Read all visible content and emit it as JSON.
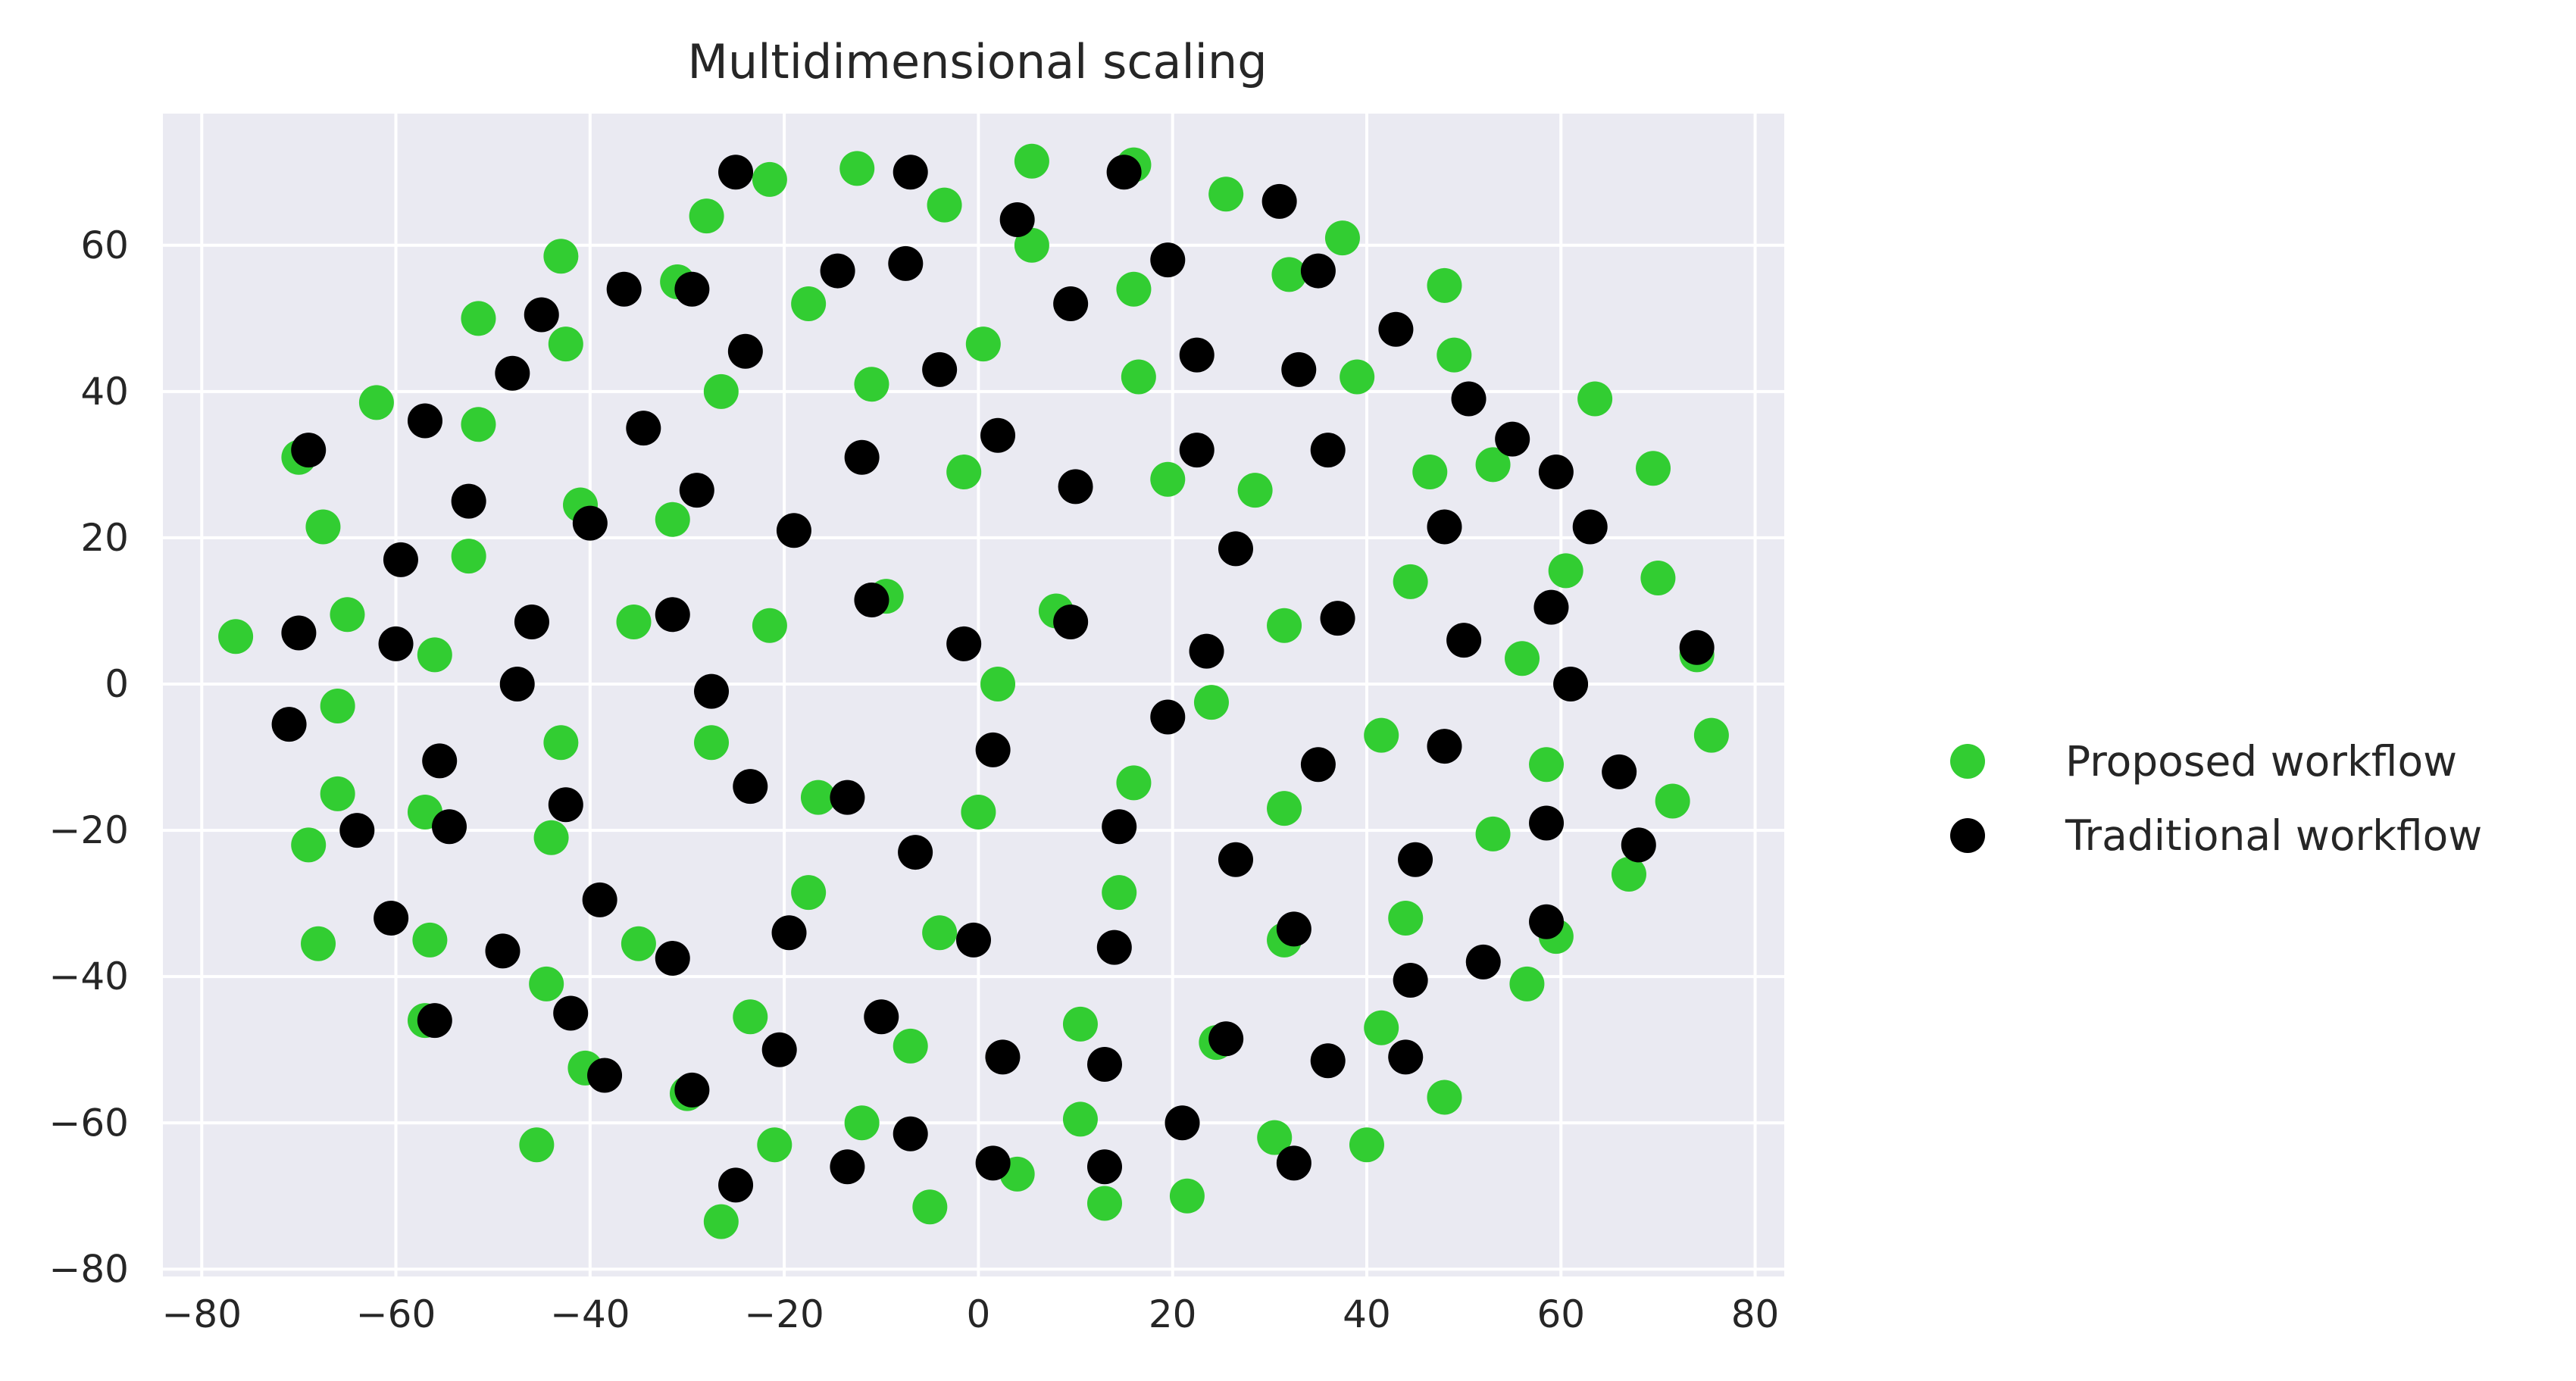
{
  "chart_data": {
    "type": "scatter",
    "title": "Multidimensional scaling",
    "xlabel": "",
    "ylabel": "",
    "xlim": [
      -84,
      83
    ],
    "ylim": [
      -81,
      78
    ],
    "xticks": [
      -80,
      -60,
      -40,
      -20,
      0,
      20,
      40,
      60,
      80
    ],
    "yticks": [
      -80,
      -60,
      -40,
      -20,
      0,
      20,
      40,
      60
    ],
    "xtick_labels": [
      "−80",
      "−60",
      "−40",
      "−20",
      "0",
      "20",
      "40",
      "60",
      "80"
    ],
    "ytick_labels": [
      "−80",
      "−60",
      "−40",
      "−20",
      "0",
      "20",
      "40",
      "60"
    ],
    "grid": true,
    "background": "#eaeaf2",
    "legend_position": "outside-right",
    "series": [
      {
        "name": "Proposed workflow",
        "color": "#32cd32",
        "points": [
          [
            -76.5,
            6.5
          ],
          [
            -70,
            31
          ],
          [
            -67.5,
            21.5
          ],
          [
            -65,
            9.5
          ],
          [
            -66,
            -3
          ],
          [
            -66,
            -15
          ],
          [
            -69,
            -22
          ],
          [
            -68,
            -35.5
          ],
          [
            -62,
            38.5
          ],
          [
            -56,
            4
          ],
          [
            -57,
            -17.5
          ],
          [
            -56.5,
            -35
          ],
          [
            -57,
            -46
          ],
          [
            -51.5,
            50
          ],
          [
            -51.5,
            35.5
          ],
          [
            -52.5,
            17.5
          ],
          [
            -43,
            58.5
          ],
          [
            -42.5,
            46.5
          ],
          [
            -41,
            24.5
          ],
          [
            -43,
            -8
          ],
          [
            -44,
            -21
          ],
          [
            -44.5,
            -41
          ],
          [
            -40.5,
            -52.5
          ],
          [
            -45.5,
            -63
          ],
          [
            -35.5,
            8.5
          ],
          [
            -35,
            -35.5
          ],
          [
            -31,
            55
          ],
          [
            -31.5,
            22.5
          ],
          [
            -28,
            64
          ],
          [
            -26.5,
            40
          ],
          [
            -27.5,
            -8
          ],
          [
            -30,
            -56
          ],
          [
            -26.5,
            -73.5
          ],
          [
            -21.5,
            69
          ],
          [
            -17.5,
            52
          ],
          [
            -21.5,
            8
          ],
          [
            -16.5,
            -15.5
          ],
          [
            -17.5,
            -28.5
          ],
          [
            -23.5,
            -45.5
          ],
          [
            -21,
            -63
          ],
          [
            -12.5,
            70.5
          ],
          [
            -11,
            41
          ],
          [
            -9.5,
            12
          ],
          [
            -12,
            -60
          ],
          [
            -7,
            -49.5
          ],
          [
            -5,
            -71.5
          ],
          [
            -4,
            -34
          ],
          [
            -3.5,
            65.5
          ],
          [
            -1.5,
            29
          ],
          [
            0.5,
            46.5
          ],
          [
            2,
            0
          ],
          [
            0,
            -17.5
          ],
          [
            4,
            -67
          ],
          [
            5.5,
            71.5
          ],
          [
            5.5,
            60
          ],
          [
            8,
            10
          ],
          [
            10.5,
            -46.5
          ],
          [
            10.5,
            -59.5
          ],
          [
            13,
            -71
          ],
          [
            16,
            71
          ],
          [
            16,
            54
          ],
          [
            16.5,
            42
          ],
          [
            19.5,
            28
          ],
          [
            16,
            -13.5
          ],
          [
            14.5,
            -28.5
          ],
          [
            25.5,
            67
          ],
          [
            28.5,
            26.5
          ],
          [
            24,
            -2.5
          ],
          [
            24.5,
            -49
          ],
          [
            21.5,
            -70
          ],
          [
            30.5,
            -62
          ],
          [
            37.5,
            61
          ],
          [
            32,
            56
          ],
          [
            39,
            42
          ],
          [
            31.5,
            8
          ],
          [
            31.5,
            -17
          ],
          [
            31.5,
            -35
          ],
          [
            40,
            -63
          ],
          [
            48,
            54.5
          ],
          [
            49,
            45
          ],
          [
            46.5,
            29
          ],
          [
            44.5,
            14
          ],
          [
            41.5,
            -7
          ],
          [
            44,
            -32
          ],
          [
            41.5,
            -47
          ],
          [
            48,
            -56.5
          ],
          [
            53,
            30
          ],
          [
            56,
            3.5
          ],
          [
            53,
            -20.5
          ],
          [
            56.5,
            -41
          ],
          [
            63.5,
            39
          ],
          [
            60.5,
            15.5
          ],
          [
            58.5,
            -11
          ],
          [
            59.5,
            -34.5
          ],
          [
            69.5,
            29.5
          ],
          [
            70,
            14.5
          ],
          [
            74,
            4
          ],
          [
            75.5,
            -7
          ],
          [
            71.5,
            -16
          ],
          [
            67,
            -26
          ]
        ]
      },
      {
        "name": "Traditional workflow",
        "color": "#000000",
        "points": [
          [
            -69,
            32
          ],
          [
            -70,
            7
          ],
          [
            -71,
            -5.5
          ],
          [
            -64,
            -20
          ],
          [
            -57,
            36
          ],
          [
            -59.5,
            17
          ],
          [
            -60,
            5.5
          ],
          [
            -55.5,
            -10.5
          ],
          [
            -54.5,
            -19.5
          ],
          [
            -60.5,
            -32
          ],
          [
            -56,
            -46
          ],
          [
            -52.5,
            25
          ],
          [
            -48,
            42.5
          ],
          [
            -45,
            50.5
          ],
          [
            -46,
            8.5
          ],
          [
            -47.5,
            0
          ],
          [
            -49,
            -36.5
          ],
          [
            -42.5,
            -16.5
          ],
          [
            -42,
            -45
          ],
          [
            -36.5,
            54
          ],
          [
            -34.5,
            35
          ],
          [
            -40,
            22
          ],
          [
            -39,
            -29.5
          ],
          [
            -38.5,
            -53.5
          ],
          [
            -31.5,
            9.5
          ],
          [
            -31.5,
            -37.5
          ],
          [
            -29.5,
            54
          ],
          [
            -29,
            26.5
          ],
          [
            -27.5,
            -1
          ],
          [
            -29.5,
            -55.5
          ],
          [
            -25,
            70
          ],
          [
            -24,
            45.5
          ],
          [
            -23.5,
            -14
          ],
          [
            -25,
            -68.5
          ],
          [
            -19,
            21
          ],
          [
            -20.5,
            -50
          ],
          [
            -19.5,
            -34
          ],
          [
            -14.5,
            56.5
          ],
          [
            -12,
            31
          ],
          [
            -11,
            11.5
          ],
          [
            -13.5,
            -15.5
          ],
          [
            -13.5,
            -66
          ],
          [
            -7,
            70
          ],
          [
            -7.5,
            57.5
          ],
          [
            -10,
            -45.5
          ],
          [
            -6.5,
            -23
          ],
          [
            -7,
            -61.5
          ],
          [
            -4,
            43
          ],
          [
            -1.5,
            5.5
          ],
          [
            -0.5,
            -35
          ],
          [
            2,
            34
          ],
          [
            1.5,
            -9
          ],
          [
            2.5,
            -51
          ],
          [
            1.5,
            -65.5
          ],
          [
            4,
            63.5
          ],
          [
            9.5,
            52
          ],
          [
            10,
            27
          ],
          [
            9.5,
            8.5
          ],
          [
            13,
            -52
          ],
          [
            13,
            -66
          ],
          [
            14,
            -36
          ],
          [
            14.5,
            -19.5
          ],
          [
            15,
            70
          ],
          [
            19.5,
            58
          ],
          [
            22.5,
            45
          ],
          [
            22.5,
            32
          ],
          [
            19.5,
            -4.5
          ],
          [
            21,
            -60
          ],
          [
            23.5,
            4.5
          ],
          [
            26.5,
            18.5
          ],
          [
            26.5,
            -24
          ],
          [
            25.5,
            -48.5
          ],
          [
            31,
            66
          ],
          [
            35,
            56.5
          ],
          [
            33,
            43
          ],
          [
            36,
            32
          ],
          [
            37,
            9
          ],
          [
            35,
            -11
          ],
          [
            32.5,
            -33.5
          ],
          [
            36,
            -51.5
          ],
          [
            32.5,
            -65.5
          ],
          [
            43,
            48.5
          ],
          [
            48,
            21.5
          ],
          [
            50.5,
            39
          ],
          [
            50,
            6
          ],
          [
            48,
            -8.5
          ],
          [
            45,
            -24
          ],
          [
            44.5,
            -40.5
          ],
          [
            44,
            -51
          ],
          [
            55,
            33.5
          ],
          [
            59.5,
            29
          ],
          [
            63,
            21.5
          ],
          [
            59,
            10.5
          ],
          [
            61,
            0
          ],
          [
            58.5,
            -19
          ],
          [
            58.5,
            -32.5
          ],
          [
            52,
            -38
          ],
          [
            66,
            -12
          ],
          [
            68,
            -22
          ],
          [
            74,
            5
          ]
        ]
      }
    ]
  }
}
